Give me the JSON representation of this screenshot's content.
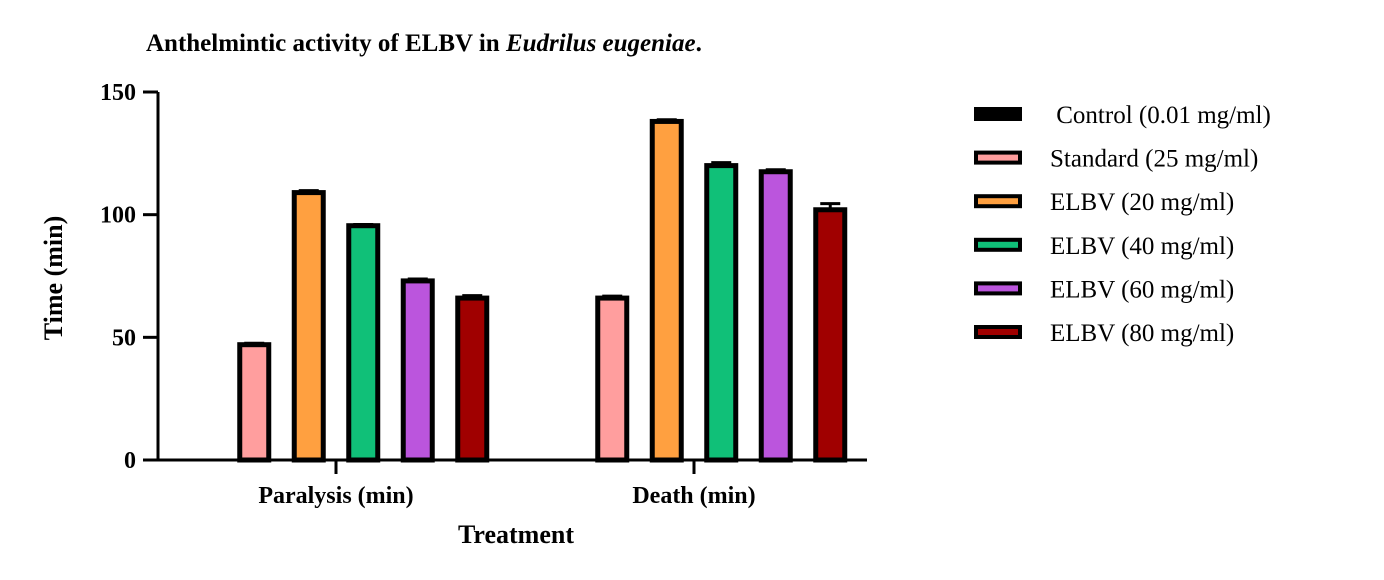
{
  "chart_data": {
    "type": "bar",
    "title_main": "Anthelmintic activity of ELBV in ",
    "title_italic": "Eudrilus eugeniae",
    "title_end": ".",
    "xlabel": "Treatment",
    "ylabel": "Time (min)",
    "ylim": [
      0,
      150
    ],
    "yticks": [
      0,
      50,
      100,
      150
    ],
    "categories": [
      "Paralysis (min)",
      "Death (min)"
    ],
    "legend_position": "right",
    "series": [
      {
        "name": " Control (0.01 mg/ml)",
        "color": "#000000",
        "values": [
          0,
          0
        ],
        "errors": [
          0,
          0
        ]
      },
      {
        "name": "Standard (25 mg/ml)",
        "color": "#ff9e9e",
        "values": [
          47,
          66
        ],
        "errors": [
          0.6,
          0.8
        ]
      },
      {
        "name": "ELBV (20 mg/ml)",
        "color": "#ffa040",
        "values": [
          109,
          138
        ],
        "errors": [
          0.8,
          0.7
        ]
      },
      {
        "name": "ELBV (40 mg/ml)",
        "color": "#10c078",
        "values": [
          95.5,
          120
        ],
        "errors": [
          0.5,
          1.2
        ]
      },
      {
        "name": "ELBV (60 mg/ml)",
        "color": "#bb55dd",
        "values": [
          73,
          117.5
        ],
        "errors": [
          0.8,
          0.8
        ]
      },
      {
        "name": "ELBV (80 mg/ml)",
        "color": "#a00000",
        "values": [
          66,
          102
        ],
        "errors": [
          1.0,
          2.5
        ]
      }
    ]
  }
}
